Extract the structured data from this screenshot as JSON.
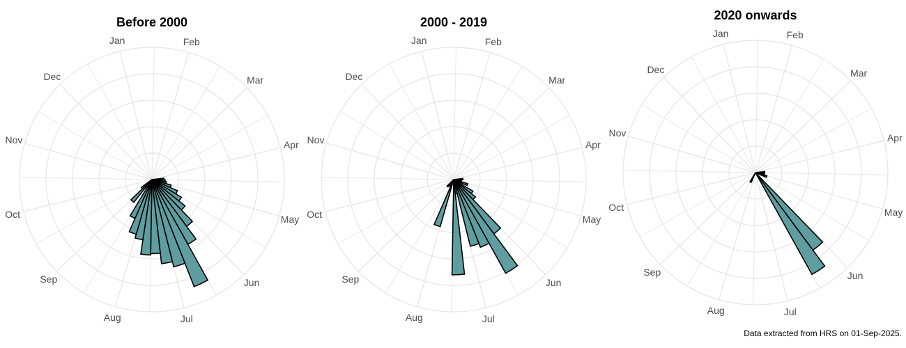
{
  "chart_data": [
    {
      "type": "polar-bar",
      "title": "Before 2000",
      "angular_axis": {
        "start": "Jan",
        "direction": "clockwise"
      },
      "months": [
        "Jan",
        "Feb",
        "Mar",
        "Apr",
        "May",
        "Jun",
        "Jul",
        "Aug",
        "Sep",
        "Oct",
        "Nov",
        "Dec"
      ],
      "bins_per_month": 4,
      "radial_max": 5,
      "radial_grid": [
        1,
        2,
        3,
        4,
        5
      ],
      "grid": true,
      "bars": [
        {
          "week": 13,
          "value": 0.45
        },
        {
          "week": 14,
          "value": 0.5
        },
        {
          "week": 15,
          "value": 0.55
        },
        {
          "week": 16,
          "value": 0.75
        },
        {
          "week": 17,
          "value": 1.05
        },
        {
          "week": 18,
          "value": 1.3
        },
        {
          "week": 19,
          "value": 1.6
        },
        {
          "week": 20,
          "value": 2.2
        },
        {
          "week": 21,
          "value": 2.8
        },
        {
          "week": 22,
          "value": 4.35
        },
        {
          "week": 23,
          "value": 3.4
        },
        {
          "week": 24,
          "value": 3.2
        },
        {
          "week": 25,
          "value": 2.8
        },
        {
          "week": 26,
          "value": 2.85
        },
        {
          "week": 27,
          "value": 2.3
        },
        {
          "week": 28,
          "value": 2.15
        },
        {
          "week": 29,
          "value": 1.6
        },
        {
          "week": 31,
          "value": 1.1
        },
        {
          "week": 32,
          "value": 0.5
        }
      ]
    },
    {
      "type": "polar-bar",
      "title": "2000 - 2019",
      "angular_axis": {
        "start": "Jan",
        "direction": "clockwise"
      },
      "months": [
        "Jan",
        "Feb",
        "Mar",
        "Apr",
        "May",
        "Jun",
        "Jul",
        "Aug",
        "Sep",
        "Oct",
        "Nov",
        "Dec"
      ],
      "bins_per_month": 4,
      "radial_max": 5,
      "radial_grid": [
        1,
        2,
        3,
        4,
        5
      ],
      "grid": true,
      "bars": [
        {
          "week": 13,
          "value": 0.35
        },
        {
          "week": 14,
          "value": 0.3
        },
        {
          "week": 16,
          "value": 0.55
        },
        {
          "week": 18,
          "value": 0.85
        },
        {
          "week": 19,
          "value": 1.05
        },
        {
          "week": 20,
          "value": 2.55
        },
        {
          "week": 21,
          "value": 4.05
        },
        {
          "week": 22,
          "value": 2.75
        },
        {
          "week": 23,
          "value": 2.6
        },
        {
          "week": 24,
          "value": 0.55
        },
        {
          "week": 25,
          "value": 3.6
        },
        {
          "week": 28,
          "value": 1.85
        },
        {
          "week": 29,
          "value": 0.3
        },
        {
          "week": 31,
          "value": 0.35
        }
      ]
    },
    {
      "type": "polar-bar",
      "title": "2020 onwards",
      "angular_axis": {
        "start": "Jan",
        "direction": "clockwise"
      },
      "months": [
        "Jan",
        "Feb",
        "Mar",
        "Apr",
        "May",
        "Jun",
        "Jul",
        "Aug",
        "Sep",
        "Oct",
        "Nov",
        "Dec"
      ],
      "bins_per_month": 4,
      "radial_max": 5,
      "radial_grid": [
        1,
        2,
        3,
        4,
        5
      ],
      "grid": true,
      "bars": [
        {
          "week": 13,
          "value": 0.35
        },
        {
          "week": 15,
          "value": 0.35
        },
        {
          "week": 16,
          "value": 0.45
        },
        {
          "week": 20,
          "value": 3.65
        },
        {
          "week": 21,
          "value": 4.4
        },
        {
          "week": 29,
          "value": 0.4
        }
      ]
    }
  ],
  "colors": {
    "bar_fill": "#5f9ea0",
    "bar_stroke": "#000000",
    "grid": "#e8e8e8",
    "month_label": "#4d4d4d"
  },
  "caption": "Data extracted from HRS on 01-Sep-2025."
}
